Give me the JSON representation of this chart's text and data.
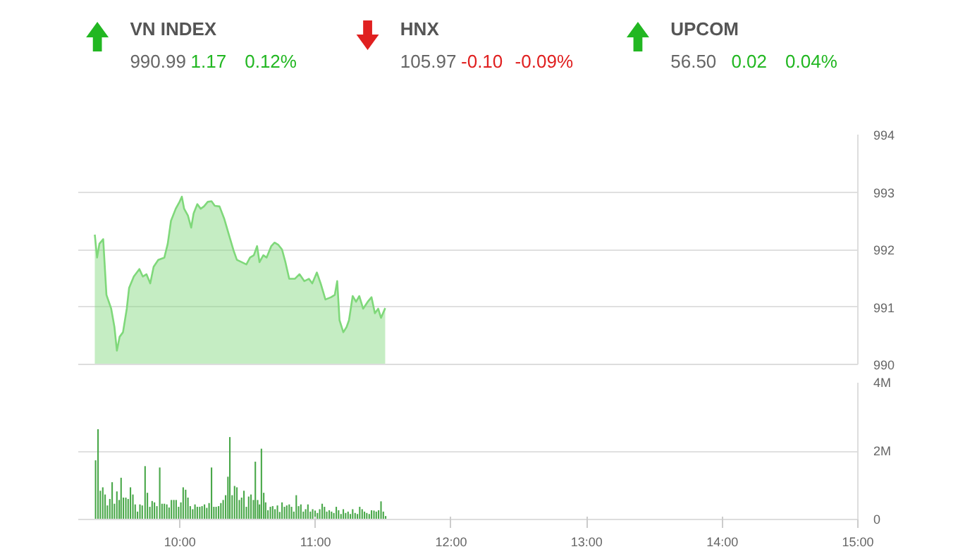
{
  "chart_data": [
    {
      "type": "other",
      "categories": [
        "VN INDEX",
        "HNX",
        "UPCOM"
      ],
      "series": [
        {
          "color": "#666666",
          "values": [
            990.99,
            105.97,
            56.5
          ],
          "value_labels": [
            "990.99",
            "105.97",
            "56.50"
          ]
        },
        {
          "colors": [
            "#22b722",
            "#e02020",
            "#22b722"
          ],
          "values": [
            1.17,
            -0.1,
            0.02
          ],
          "value_labels": [
            "1.17",
            "-0.10",
            "0.02"
          ]
        },
        {
          "colors": [
            "#22b722",
            "#e02020",
            "#22b722"
          ],
          "values": [
            0.12,
            -0.09,
            0.04
          ],
          "value_labels": [
            "0.12%",
            "-0.09%",
            "0.04%"
          ]
        }
      ]
    },
    {
      "type": "area",
      "xlim": [
        9.25,
        15
      ],
      "xticks": [
        {
          "value": 10,
          "label": null
        },
        {
          "value": 11,
          "label": null
        },
        {
          "value": 12,
          "label": null
        },
        {
          "value": 13,
          "label": null
        },
        {
          "value": 14,
          "label": null
        },
        {
          "value": 15,
          "label": null
        }
      ],
      "ylim": [
        990,
        994
      ],
      "yticks": [
        990,
        991,
        992,
        993,
        994
      ],
      "grid": "y",
      "tick_labels": "y",
      "series": [
        {
          "color": "#7fd87a",
          "x": [
            9.372,
            9.389,
            9.406,
            9.434,
            9.458,
            9.493,
            9.517,
            9.535,
            9.555,
            9.58,
            9.608,
            9.625,
            9.66,
            9.701,
            9.726,
            9.753,
            9.781,
            9.806,
            9.84,
            9.885,
            9.91,
            9.934,
            9.969,
            9.997,
            10.014,
            10.031,
            10.059,
            10.083,
            10.101,
            10.128,
            10.153,
            10.177,
            10.205,
            10.233,
            10.257,
            10.292,
            10.326,
            10.361,
            10.396,
            10.42,
            10.455,
            10.49,
            10.517,
            10.545,
            10.569,
            10.587,
            10.615,
            10.639,
            10.674,
            10.698,
            10.726,
            10.753,
            10.778,
            10.806,
            10.847,
            10.882,
            10.917,
            10.951,
            10.976,
            11.01,
            11.038,
            11.073,
            11.115,
            11.142,
            11.16,
            11.177,
            11.205,
            11.229,
            11.247,
            11.274,
            11.299,
            11.323,
            11.351,
            11.385,
            11.413,
            11.438,
            11.462,
            11.483,
            11.514
          ],
          "values": [
            992.26,
            991.86,
            992.1,
            992.18,
            991.21,
            990.97,
            990.65,
            990.24,
            990.48,
            990.56,
            990.97,
            991.33,
            991.53,
            991.66,
            991.53,
            991.57,
            991.41,
            991.7,
            991.82,
            991.86,
            992.1,
            992.5,
            992.71,
            992.83,
            992.92,
            992.71,
            992.59,
            992.38,
            992.63,
            992.79,
            992.71,
            992.75,
            992.83,
            992.84,
            992.76,
            992.75,
            992.54,
            992.26,
            991.98,
            991.82,
            991.78,
            991.74,
            991.86,
            991.9,
            992.06,
            991.78,
            991.9,
            991.86,
            992.06,
            992.12,
            992.08,
            992.0,
            991.78,
            991.49,
            991.49,
            991.57,
            991.45,
            991.49,
            991.41,
            991.6,
            991.41,
            991.13,
            991.17,
            991.21,
            991.45,
            990.77,
            990.56,
            990.65,
            990.77,
            991.19,
            991.09,
            991.19,
            990.97,
            991.09,
            991.17,
            990.89,
            990.97,
            990.81,
            990.98
          ]
        }
      ]
    },
    {
      "type": "bar",
      "xlim": [
        9.25,
        15
      ],
      "xticks": [
        {
          "value": 10,
          "label": "10:00"
        },
        {
          "value": 11,
          "label": "11:00"
        },
        {
          "value": 12,
          "label": "12:00"
        },
        {
          "value": 13,
          "label": "13:00"
        },
        {
          "value": 14,
          "label": "14:00"
        },
        {
          "value": 15,
          "label": "15:00"
        }
      ],
      "ylim": [
        0,
        4
      ],
      "yticks": [
        0,
        {
          "value": 2,
          "label": "2M"
        },
        {
          "value": 4,
          "label": "4M"
        }
      ],
      "grid": "y",
      "series": [
        {
          "color": "#4aa84a",
          "x": [
            9.378,
            9.396,
            9.413,
            9.431,
            9.448,
            9.465,
            9.483,
            9.5,
            9.517,
            9.535,
            9.552,
            9.566,
            9.583,
            9.601,
            9.618,
            9.635,
            9.653,
            9.67,
            9.687,
            9.705,
            9.722,
            9.743,
            9.76,
            9.778,
            9.795,
            9.812,
            9.83,
            9.851,
            9.868,
            9.885,
            9.903,
            9.92,
            9.937,
            9.955,
            9.972,
            9.99,
            10.007,
            10.024,
            10.042,
            10.059,
            10.076,
            10.094,
            10.111,
            10.128,
            10.146,
            10.163,
            10.181,
            10.198,
            10.215,
            10.233,
            10.25,
            10.267,
            10.285,
            10.302,
            10.319,
            10.337,
            10.354,
            10.368,
            10.385,
            10.403,
            10.42,
            10.438,
            10.455,
            10.472,
            10.49,
            10.507,
            10.524,
            10.542,
            10.556,
            10.573,
            10.587,
            10.601,
            10.618,
            10.632,
            10.649,
            10.667,
            10.684,
            10.701,
            10.719,
            10.736,
            10.753,
            10.771,
            10.788,
            10.806,
            10.823,
            10.84,
            10.858,
            10.875,
            10.892,
            10.91,
            10.927,
            10.944,
            10.962,
            10.979,
            10.997,
            11.014,
            11.031,
            11.049,
            11.066,
            11.083,
            11.101,
            11.118,
            11.135,
            11.153,
            11.17,
            11.188,
            11.205,
            11.222,
            11.24,
            11.257,
            11.274,
            11.292,
            11.309,
            11.326,
            11.344,
            11.361,
            11.378,
            11.396,
            11.413,
            11.431,
            11.448,
            11.465,
            11.483,
            11.5,
            11.517
          ],
          "values": [
            1.73,
            2.64,
            0.84,
            0.94,
            0.73,
            0.41,
            0.6,
            1.09,
            0.46,
            0.82,
            0.57,
            1.22,
            0.64,
            0.64,
            0.6,
            0.94,
            0.73,
            0.44,
            0.23,
            0.44,
            0.41,
            1.56,
            0.78,
            0.37,
            0.54,
            0.5,
            0.39,
            1.52,
            0.46,
            0.46,
            0.44,
            0.35,
            0.57,
            0.57,
            0.57,
            0.37,
            0.5,
            0.94,
            0.87,
            0.64,
            0.39,
            0.3,
            0.44,
            0.37,
            0.37,
            0.39,
            0.44,
            0.34,
            0.48,
            1.52,
            0.37,
            0.37,
            0.39,
            0.48,
            0.57,
            0.71,
            1.25,
            2.41,
            0.71,
            0.98,
            0.94,
            0.57,
            0.64,
            0.84,
            0.37,
            0.67,
            0.73,
            0.57,
            1.69,
            0.57,
            0.44,
            2.07,
            0.78,
            0.5,
            0.27,
            0.37,
            0.39,
            0.3,
            0.41,
            0.22,
            0.5,
            0.37,
            0.41,
            0.44,
            0.37,
            0.23,
            0.71,
            0.39,
            0.44,
            0.23,
            0.3,
            0.44,
            0.23,
            0.3,
            0.26,
            0.19,
            0.3,
            0.46,
            0.37,
            0.23,
            0.27,
            0.23,
            0.19,
            0.37,
            0.27,
            0.16,
            0.3,
            0.19,
            0.23,
            0.16,
            0.3,
            0.19,
            0.16,
            0.37,
            0.3,
            0.23,
            0.19,
            0.16,
            0.27,
            0.26,
            0.23,
            0.27,
            0.53,
            0.23,
            0.1
          ]
        }
      ]
    }
  ]
}
